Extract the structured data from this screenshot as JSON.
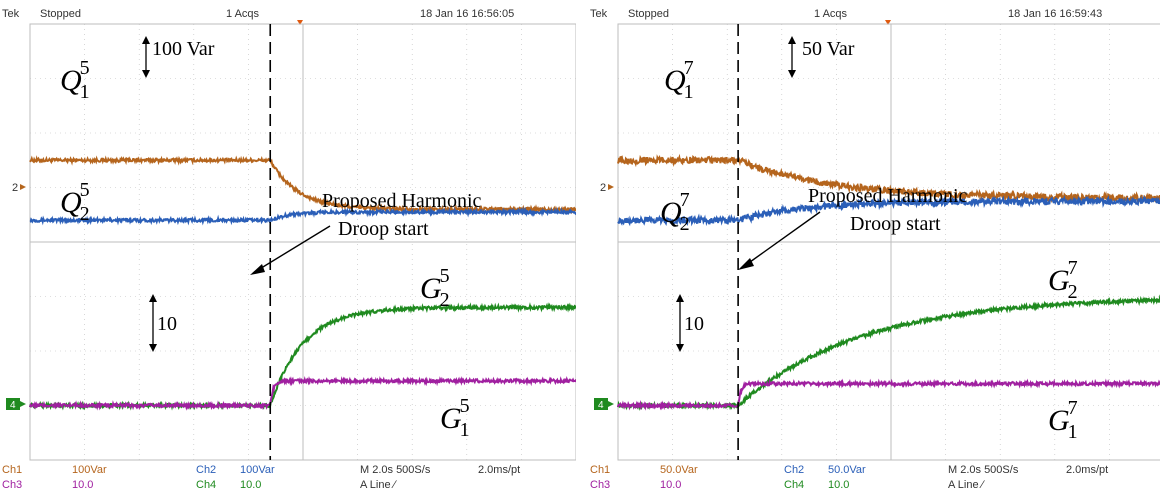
{
  "scopes": [
    {
      "header": {
        "brand": "Tek",
        "status": "Stopped",
        "acqs": "1 Acqs",
        "timestamp": "18 Jan 16 16:56:05"
      },
      "scale_annotation_top": "100 Var",
      "scale_annotation_bottom": "10",
      "labels": {
        "q1": {
          "base": "Q",
          "sub": "1",
          "sup": "5"
        },
        "q2": {
          "base": "Q",
          "sub": "2",
          "sup": "5"
        },
        "g2": {
          "base": "G",
          "sub": "2",
          "sup": "5"
        },
        "g1": {
          "base": "G",
          "sub": "1",
          "sup": "5"
        }
      },
      "annotation_line1": "Proposed Harmonic",
      "annotation_line2": "Droop start",
      "ground_markers": {
        "upper": "2",
        "lower": "4"
      },
      "footer": {
        "ch1": "Ch1",
        "ch1_scale": "100Var",
        "ch2": "Ch2",
        "ch2_scale": "100Var",
        "ch3": "Ch3",
        "ch3_scale": "10.0",
        "ch4": "Ch4",
        "ch4_scale": "10.0",
        "timebase": "M 2.0s 500S/s",
        "pt": "2.0ms/pt",
        "trigger": "A  Line  ∕"
      }
    },
    {
      "header": {
        "brand": "Tek",
        "status": "Stopped",
        "acqs": "1 Acqs",
        "timestamp": "18 Jan 16 16:59:43"
      },
      "scale_annotation_top": "50 Var",
      "scale_annotation_bottom": "10",
      "labels": {
        "q1": {
          "base": "Q",
          "sub": "1",
          "sup": "7"
        },
        "q2": {
          "base": "Q",
          "sub": "2",
          "sup": "7"
        },
        "g2": {
          "base": "G",
          "sub": "2",
          "sup": "7"
        },
        "g1": {
          "base": "G",
          "sub": "1",
          "sup": "7"
        }
      },
      "annotation_line1": "Proposed Harmonic",
      "annotation_line2": "Droop start",
      "ground_markers": {
        "upper": "2",
        "lower": "4"
      },
      "footer": {
        "ch1": "Ch1",
        "ch1_scale": "50.0Var",
        "ch2": "Ch2",
        "ch2_scale": "50.0Var",
        "ch3": "Ch3",
        "ch3_scale": "10.0",
        "ch4": "Ch4",
        "ch4_scale": "10.0",
        "timebase": "M 2.0s 500S/s",
        "pt": "2.0ms/pt",
        "trigger": "A  Line  ∕"
      }
    }
  ],
  "colors": {
    "ch1": "#b5651d",
    "ch2": "#2b5fb8",
    "ch3": "#a020a0",
    "ch4": "#1f8a1f",
    "grid": "#bdbdbd"
  },
  "chart_data": [
    {
      "type": "line",
      "x_unit": "s",
      "xlim": [
        0,
        20
      ],
      "ylim": [
        -4,
        4
      ],
      "droop_start_x": 8.8,
      "series": [
        {
          "name": "Q1^5",
          "channel": "ch1",
          "before": 1.5,
          "after": 0.6,
          "tau": 1.0,
          "noise": 0.03
        },
        {
          "name": "Q2^5",
          "channel": "ch2",
          "before": 0.4,
          "after": 0.55,
          "tau": 0.7,
          "noise": 0.03
        },
        {
          "name": "G2^5",
          "channel": "ch4",
          "before": -3.0,
          "after": -1.2,
          "tau": 1.2,
          "noise": 0.03
        },
        {
          "name": "G1^5",
          "channel": "ch3",
          "before": -3.0,
          "after": -2.55,
          "tau": 0.1,
          "noise": 0.03
        }
      ]
    },
    {
      "type": "line",
      "x_unit": "s",
      "xlim": [
        0,
        20
      ],
      "ylim": [
        -4,
        4
      ],
      "droop_start_x": 4.4,
      "series": [
        {
          "name": "Q1^7",
          "channel": "ch1",
          "before": 1.5,
          "after": 0.8,
          "tau": 3.5,
          "noise": 0.06
        },
        {
          "name": "Q2^7",
          "channel": "ch2",
          "before": 0.4,
          "after": 0.75,
          "tau": 2.5,
          "noise": 0.06
        },
        {
          "name": "G2^7",
          "channel": "ch4",
          "before": -3.0,
          "after": -1.0,
          "tau": 4.5,
          "noise": 0.03
        },
        {
          "name": "G1^7",
          "channel": "ch3",
          "before": -3.0,
          "after": -2.6,
          "tau": 0.1,
          "noise": 0.03
        }
      ]
    }
  ]
}
